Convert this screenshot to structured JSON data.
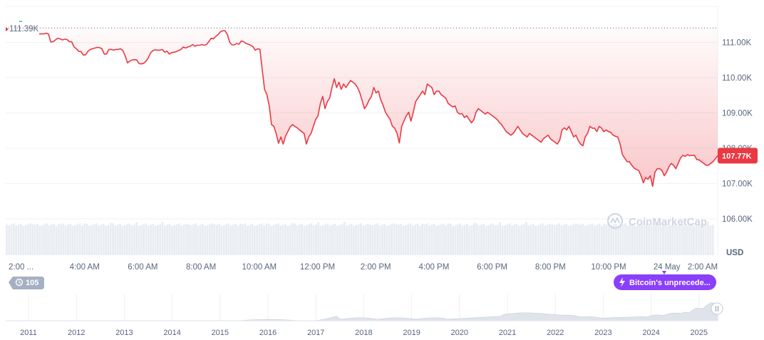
{
  "chart_data": {
    "type": "area",
    "currency": "USD",
    "y_ticks": [
      "111.00K",
      "110.00K",
      "109.00K",
      "108.00K",
      "107.00K",
      "106.00K"
    ],
    "y_tick_values": [
      111000,
      110000,
      109000,
      108000,
      107000,
      106000
    ],
    "ylim": [
      106000,
      112000
    ],
    "x_ticks": [
      "2:00 ...",
      "4:00 AM",
      "6:00 AM",
      "8:00 AM",
      "10:00 AM",
      "12:00 PM",
      "2:00 PM",
      "4:00 PM",
      "6:00 PM",
      "8:00 PM",
      "10:00 PM",
      "24 May",
      "2:00 AM"
    ],
    "reference_price": 111390,
    "reference_label": "111.39K",
    "current_price_label": "107.77K",
    "series": [
      {
        "values": [
          111220,
          111220,
          111220,
          111240,
          111220,
          110990,
          111000,
          111050,
          111100,
          111080,
          111050,
          111070,
          111060,
          111000,
          111000,
          110850,
          110800,
          110730,
          110720,
          110620,
          110630,
          110730,
          110780,
          110800,
          110820,
          110840,
          110830,
          110800,
          110650,
          110650,
          110780,
          110780,
          110760,
          110780,
          110780,
          110800,
          110750,
          110600,
          110400,
          110450,
          110480,
          110490,
          110480,
          110380,
          110370,
          110390,
          110450,
          110550,
          110690,
          110750,
          110770,
          110760,
          110760,
          110780,
          110700,
          110730,
          110650,
          110690,
          110700,
          110720,
          110750,
          110780,
          110850,
          110820,
          110850,
          110870,
          110920,
          110870,
          110900,
          110900,
          110920,
          110900,
          110920,
          111000,
          111100,
          111080,
          111150,
          111200,
          111280,
          111310,
          111310,
          111200,
          110980,
          110910,
          110910,
          110950,
          110930,
          111020,
          111000,
          110950,
          110930,
          110900,
          110860,
          110760,
          110800,
          110780,
          110200,
          109650,
          109500,
          109180,
          108650,
          108600,
          108400,
          108120,
          108300,
          108100,
          108320,
          108450,
          108580,
          108650,
          108600,
          108560,
          108500,
          108450,
          108400,
          108100,
          108300,
          108400,
          108600,
          108800,
          108900,
          109250,
          109450,
          109100,
          109300,
          109400,
          109700,
          109950,
          109700,
          109850,
          109650,
          109800,
          109700,
          109800,
          109900,
          109850,
          109800,
          109700,
          109550,
          109330,
          109100,
          109200,
          109350,
          109450,
          109700,
          109550,
          109600,
          109350,
          109200,
          109000,
          108900,
          108800,
          108600,
          108550,
          108400,
          108130,
          108600,
          108760,
          108900,
          109000,
          108750,
          109000,
          109300,
          109400,
          109500,
          109600,
          109500,
          109800,
          109750,
          109700,
          109500,
          109600,
          109600,
          109500,
          109450,
          109400,
          109250,
          109200,
          109150,
          109180,
          109000,
          108950,
          108960,
          108850,
          108900,
          108800,
          108700,
          108780,
          109000,
          109100,
          109050,
          109000,
          108950,
          109000,
          108950,
          108900,
          108850,
          108800,
          108720,
          108650,
          108550,
          108450,
          108400,
          108350,
          108400,
          108500,
          108600,
          108500,
          108400,
          108350,
          108300,
          108400,
          108350,
          108300,
          108250,
          108200,
          108150,
          108250,
          108300,
          108350,
          108250,
          108200,
          108150,
          108100,
          108200,
          108500,
          108560,
          108500,
          108600,
          108450,
          108300,
          108350,
          108200,
          108100,
          108050,
          108300,
          108400,
          108600,
          108550,
          108550,
          108450,
          108600,
          108550,
          108450,
          108500,
          108450,
          108430,
          108350,
          108320,
          108300,
          108100,
          107800,
          107700,
          107600,
          107600,
          107500,
          107420,
          107380,
          107350,
          107200,
          107000,
          107150,
          107100,
          107200,
          106900,
          107300,
          107400,
          107400,
          107350,
          107200,
          107300,
          107450,
          107550,
          107500,
          107400,
          107550,
          107700,
          107780,
          107750,
          107800,
          107770,
          107780,
          107780,
          107660,
          107650,
          107600,
          107550,
          107500,
          107500,
          107550,
          107600,
          107680,
          107770
        ]
      }
    ],
    "volume_bars": 300,
    "navigator": {
      "years": [
        "2011",
        "2012",
        "2013",
        "2014",
        "2015",
        "2016",
        "2017",
        "2018",
        "2019",
        "2020",
        "2021",
        "2022",
        "2023",
        "2024",
        "2025"
      ]
    }
  },
  "ui": {
    "watermark": "CoinMarketCap",
    "currency_label": "USD",
    "events_badge": "105",
    "news_badge": "Bitcoin's unprecede..."
  },
  "colors": {
    "line": "#ea3943",
    "area_fill_top": "#ea3943",
    "grid": "#eff2f5",
    "reference_line": "#58667e",
    "news_badge": "#8a3ffc",
    "events_badge": "#a6b0c3",
    "volume": "#e9ecf1"
  }
}
